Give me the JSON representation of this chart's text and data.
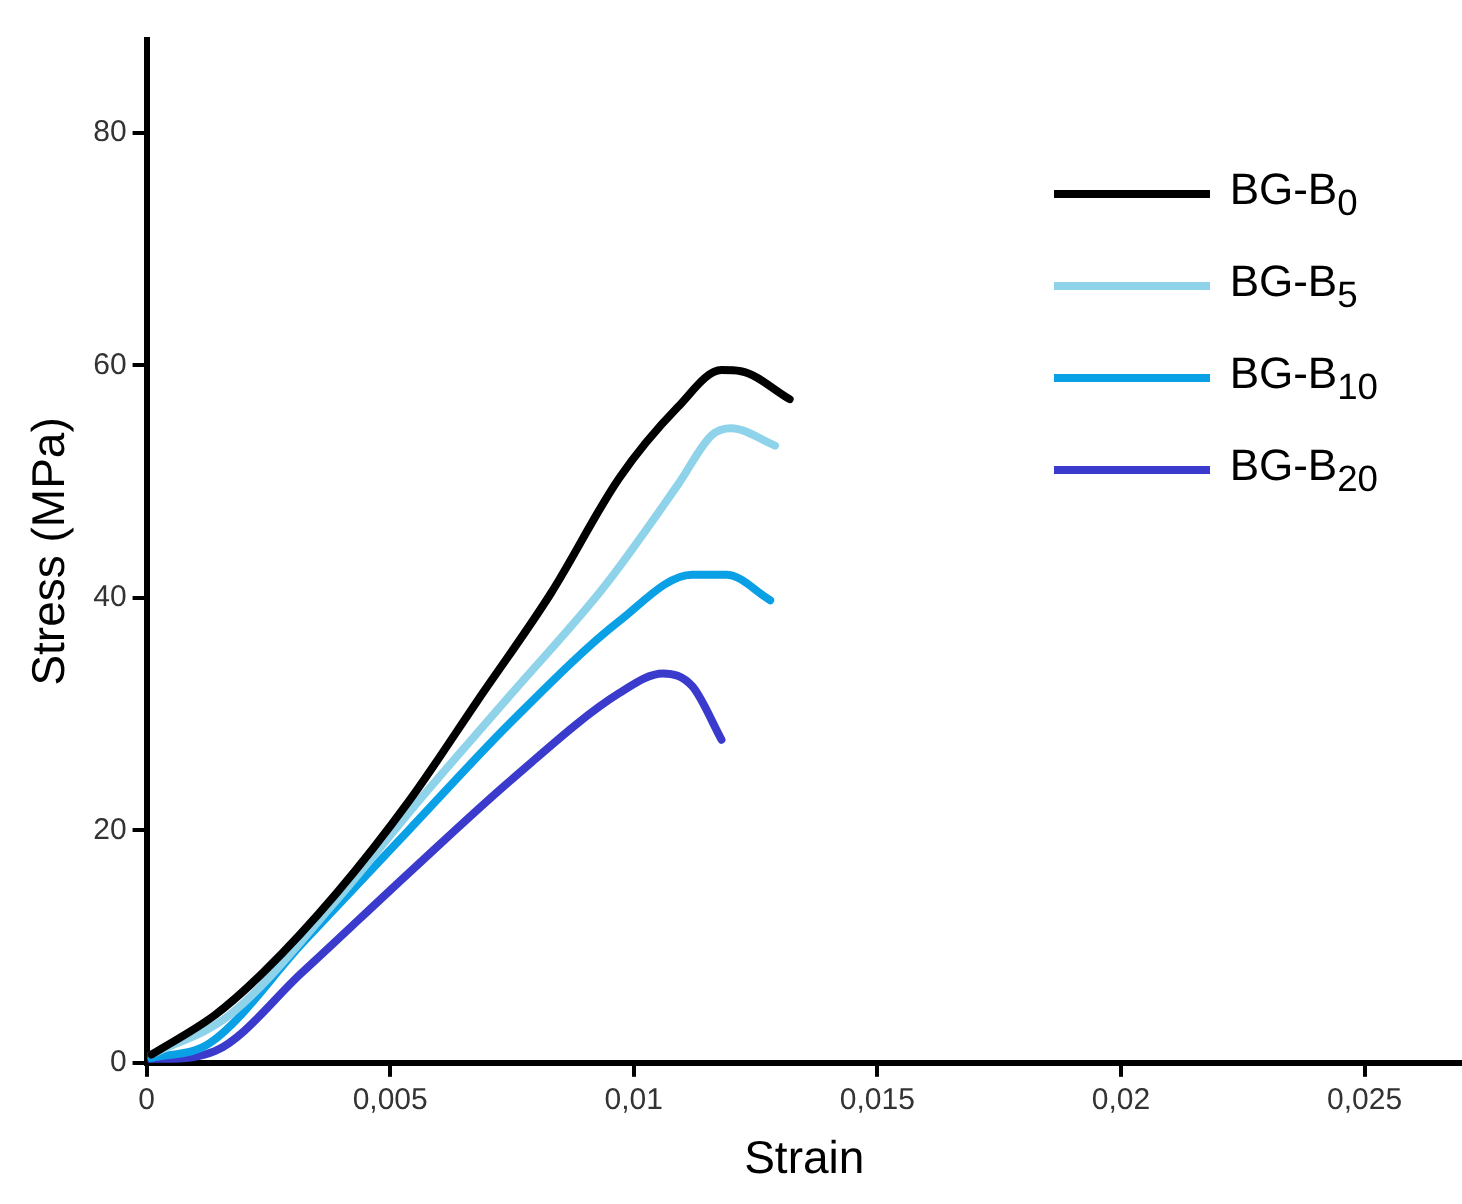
{
  "chart_data": {
    "type": "line",
    "xlabel": "Strain",
    "ylabel": "Stress (MPa)",
    "xlim": [
      0,
      0.027
    ],
    "ylim": [
      0,
      88
    ],
    "xticks": [
      0,
      {
        "value": 0.005,
        "label": "0,005"
      },
      {
        "value": 0.01,
        "label": "0,01"
      },
      {
        "value": 0.015,
        "label": "0,015"
      },
      {
        "value": 0.02,
        "label": "0,02"
      },
      {
        "value": 0.025,
        "label": "0,025"
      }
    ],
    "yticks": [
      0,
      20,
      40,
      60,
      80
    ],
    "grid": false,
    "legend": "top right",
    "marker": "none",
    "line_style": "solid",
    "series": [
      {
        "name": "BG-B$_{0}$",
        "color": "#000000",
        "x": [
          0.0001,
          0.0014,
          0.0024,
          0.0039,
          0.0054,
          0.0068,
          0.0083,
          0.0097,
          0.0109,
          0.0118,
          0.0122,
          0.0132
        ],
        "values": [
          0.7,
          4.1,
          7.8,
          14.6,
          22.6,
          31.2,
          40.4,
          50.3,
          56.4,
          59.6,
          59.5,
          57.1
        ]
      },
      {
        "name": "BG-B$_{5}$",
        "color": "#8fd3ea",
        "x": [
          0.0001,
          0.0017,
          0.0039,
          0.0056,
          0.0075,
          0.0094,
          0.0109,
          0.0116,
          0.012,
          0.0129
        ],
        "values": [
          0.7,
          4.1,
          14,
          22.6,
          31.8,
          41,
          49.7,
          54,
          54.6,
          53.1
        ]
      },
      {
        "name": "BG-B$_{10}$",
        "color": "#0aa0e6",
        "x": [
          0.0001,
          0.0013,
          0.0032,
          0.0054,
          0.0075,
          0.0097,
          0.0112,
          0.0119,
          0.0128
        ],
        "values": [
          0.4,
          1.7,
          10.3,
          20.1,
          29.4,
          38,
          42,
          42,
          39.8
        ]
      },
      {
        "name": "BG-B$_{20}$",
        "color": "#3a3acc",
        "x": [
          0.0001,
          0.0014,
          0.0032,
          0.0054,
          0.0075,
          0.0097,
          0.0106,
          0.0112,
          0.0118
        ],
        "values": [
          0.2,
          1,
          7.8,
          16.4,
          24.4,
          31.8,
          33.5,
          32.4,
          27.8
        ]
      }
    ]
  }
}
